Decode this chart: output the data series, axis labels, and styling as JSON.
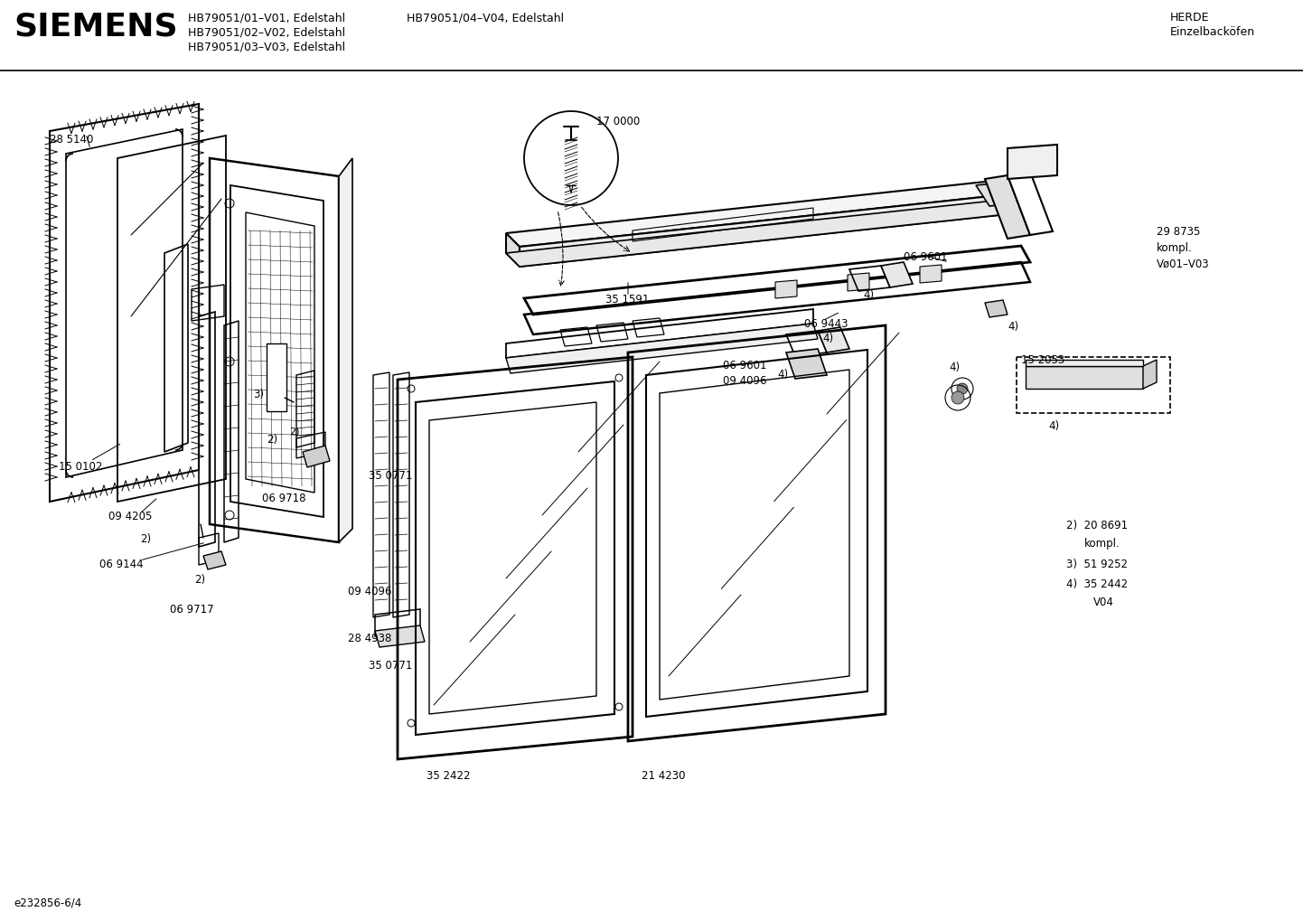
{
  "title_siemens": "SIEMENS",
  "header_left_line1": "HB79051/01–V01, Edelstahl",
  "header_left_line2": "HB79051/02–V02, Edelstahl",
  "header_left_line3": "HB79051/03–V03, Edelstahl",
  "header_center": "HB79051/04–V04, Edelstahl",
  "header_right_line1": "HERDE",
  "header_right_line2": "Einzelbacköfen",
  "footer_left": "e232856-6/4",
  "bg_color": "#ffffff",
  "line_color": "#000000",
  "text_color": "#000000"
}
